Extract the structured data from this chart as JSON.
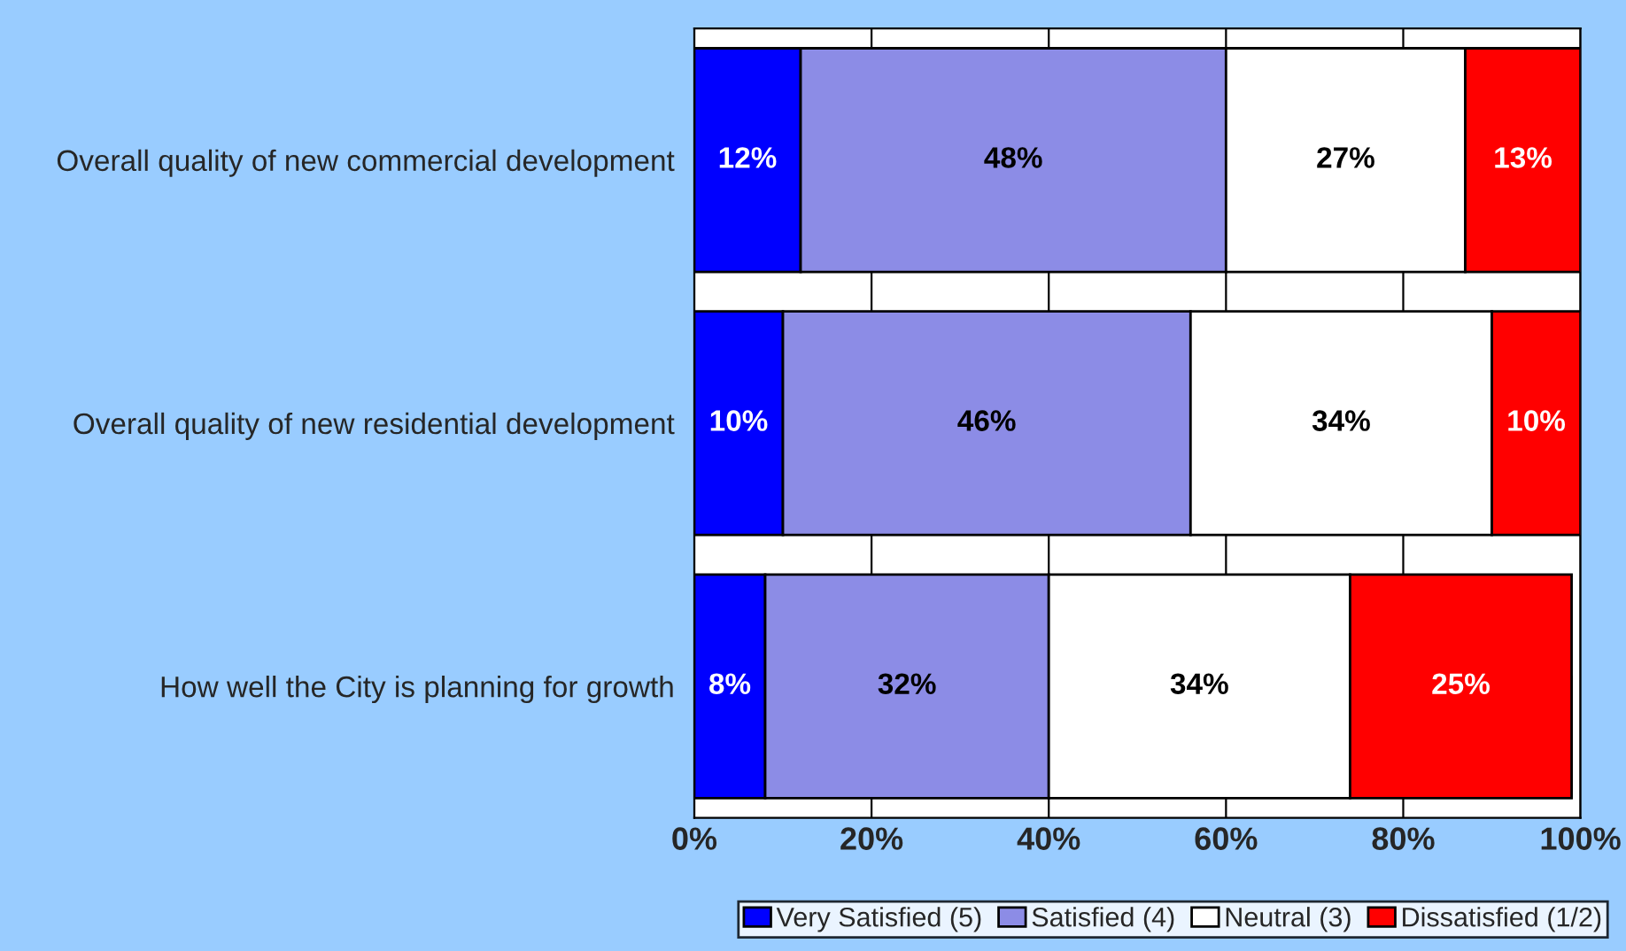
{
  "chart_data": {
    "type": "bar",
    "orientation": "horizontal",
    "stacked": true,
    "categories": [
      "Overall quality of new commercial development",
      "Overall quality of new residential development",
      "How well the City is planning for growth"
    ],
    "series": [
      {
        "name": "Very Satisfied (5)",
        "color": "#0000ff",
        "values": [
          12,
          10,
          8
        ],
        "value_labels": [
          "12%",
          "10%",
          "8%"
        ]
      },
      {
        "name": "Satisfied (4)",
        "color": "#8c8ce6",
        "values": [
          48,
          46,
          32
        ],
        "value_labels": [
          "48%",
          "46%",
          "32%"
        ]
      },
      {
        "name": "Neutral (3)",
        "color": "#ffffff",
        "values": [
          27,
          34,
          34
        ],
        "value_labels": [
          "27%",
          "34%",
          "34%"
        ]
      },
      {
        "name": "Dissatisfied (1/2)",
        "color": "#ff0000",
        "values": [
          13,
          10,
          25
        ],
        "value_labels": [
          "13%",
          "10%",
          "25%"
        ]
      }
    ],
    "xlim": [
      0,
      100
    ],
    "xticks": [
      {
        "value": 0,
        "label": "0%"
      },
      {
        "value": 20,
        "label": "20%"
      },
      {
        "value": 40,
        "label": "40%"
      },
      {
        "value": 60,
        "label": "60%"
      },
      {
        "value": 80,
        "label": "80%"
      },
      {
        "value": 100,
        "label": "100%"
      }
    ],
    "grid": "x",
    "legend": "bottom"
  }
}
